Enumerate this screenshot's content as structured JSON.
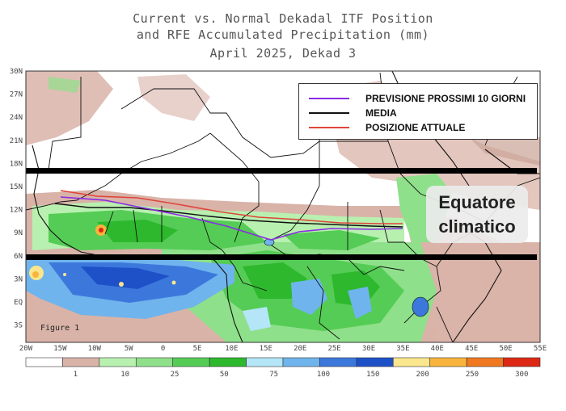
{
  "title": {
    "line1": "Current vs. Normal Dekadal ITF Position",
    "line2": "and RFE Accumulated Precipitation (mm)",
    "line3": "April 2025, Dekad 3"
  },
  "figure_label": "Figure 1",
  "legend": [
    {
      "label": "PREVISIONE PROSSIMI 10 GIORNI",
      "color": "#8a2be2"
    },
    {
      "label": "MEDIA",
      "color": "#111111"
    },
    {
      "label": "POSIZIONE ATTUALE",
      "color": "#e0443a"
    }
  ],
  "annotation": {
    "line1": "Equatore",
    "line2": "climatico"
  },
  "axes": {
    "lat_labels": [
      "30N",
      "27N",
      "24N",
      "21N",
      "18N",
      "15N",
      "12N",
      "9N",
      "6N",
      "3N",
      "EQ",
      "3S"
    ],
    "lon_labels": [
      "20W",
      "15W",
      "10W",
      "5W",
      "0",
      "5E",
      "10E",
      "15E",
      "20E",
      "25E",
      "30E",
      "35E",
      "40E",
      "45E",
      "50E",
      "55E"
    ]
  },
  "colorbar": {
    "labels": [
      "1",
      "10",
      "25",
      "50",
      "75",
      "100",
      "150",
      "200",
      "250",
      "300"
    ],
    "colors": [
      "#ffffff",
      "#d9b3a8",
      "#b8f0b0",
      "#8fe08a",
      "#55cc55",
      "#2db82d",
      "#b4e6f7",
      "#6fb4ec",
      "#3c78dc",
      "#1e50c8",
      "#fae68c",
      "#f8b43c",
      "#f07820",
      "#dc2814"
    ]
  },
  "bands": {
    "upper_lat": "17N",
    "lower_lat": "6N"
  }
}
